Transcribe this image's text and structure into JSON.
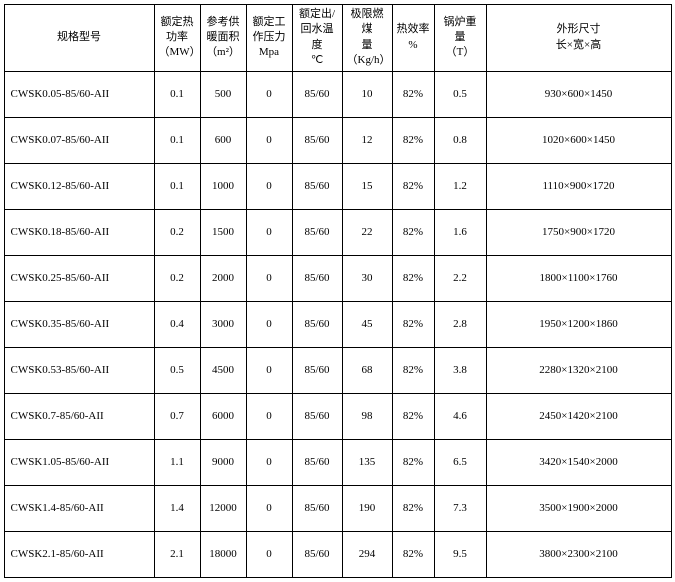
{
  "headers": {
    "model": "规格型号",
    "power": "额定热<br>功率<br>（MW）",
    "area": "参考供<br>暖面积<br>（m²）",
    "pressure": "额定工<br>作压力<br>Mpa",
    "temp": "额定出/<br>回水温度<br>℃",
    "coal": "极限燃煤<br>量<br>（Kg/h）",
    "eff": "热效率<br>%",
    "weight": "锅炉重量<br>（T）",
    "dim": "外形尺寸<br>长×宽×高"
  },
  "rows": [
    {
      "model": "CWSK0.05-85/60-AII",
      "power": "0.1",
      "area": "500",
      "pressure": "0",
      "temp": "85/60",
      "coal": "10",
      "eff": "82%",
      "weight": "0.5",
      "dim": "930×600×1450"
    },
    {
      "model": "CWSK0.07-85/60-AII",
      "power": "0.1",
      "area": "600",
      "pressure": "0",
      "temp": "85/60",
      "coal": "12",
      "eff": "82%",
      "weight": "0.8",
      "dim": "1020×600×1450"
    },
    {
      "model": "CWSK0.12-85/60-AII",
      "power": "0.1",
      "area": "1000",
      "pressure": "0",
      "temp": "85/60",
      "coal": "15",
      "eff": "82%",
      "weight": "1.2",
      "dim": "1110×900×1720"
    },
    {
      "model": "CWSK0.18-85/60-AII",
      "power": "0.2",
      "area": "1500",
      "pressure": "0",
      "temp": "85/60",
      "coal": "22",
      "eff": "82%",
      "weight": "1.6",
      "dim": "1750×900×1720"
    },
    {
      "model": "CWSK0.25-85/60-AII",
      "power": "0.2",
      "area": "2000",
      "pressure": "0",
      "temp": "85/60",
      "coal": "30",
      "eff": "82%",
      "weight": "2.2",
      "dim": "1800×1100×1760"
    },
    {
      "model": "CWSK0.35-85/60-AII",
      "power": "0.4",
      "area": "3000",
      "pressure": "0",
      "temp": "85/60",
      "coal": "45",
      "eff": "82%",
      "weight": "2.8",
      "dim": "1950×1200×1860"
    },
    {
      "model": "CWSK0.53-85/60-AII",
      "power": "0.5",
      "area": "4500",
      "pressure": "0",
      "temp": "85/60",
      "coal": "68",
      "eff": "82%",
      "weight": "3.8",
      "dim": "2280×1320×2100"
    },
    {
      "model": "CWSK0.7-85/60-AII",
      "power": "0.7",
      "area": "6000",
      "pressure": "0",
      "temp": "85/60",
      "coal": "98",
      "eff": "82%",
      "weight": "4.6",
      "dim": "2450×1420×2100"
    },
    {
      "model": "CWSK1.05-85/60-AII",
      "power": "1.1",
      "area": "9000",
      "pressure": "0",
      "temp": "85/60",
      "coal": "135",
      "eff": "82%",
      "weight": "6.5",
      "dim": "3420×1540×2000"
    },
    {
      "model": "CWSK1.4-85/60-AII",
      "power": "1.4",
      "area": "12000",
      "pressure": "0",
      "temp": "85/60",
      "coal": "190",
      "eff": "82%",
      "weight": "7.3",
      "dim": "3500×1900×2000"
    },
    {
      "model": "CWSK2.1-85/60-AII",
      "power": "2.1",
      "area": "18000",
      "pressure": "0",
      "temp": "85/60",
      "coal": "294",
      "eff": "82%",
      "weight": "9.5",
      "dim": "3800×2300×2100"
    }
  ]
}
